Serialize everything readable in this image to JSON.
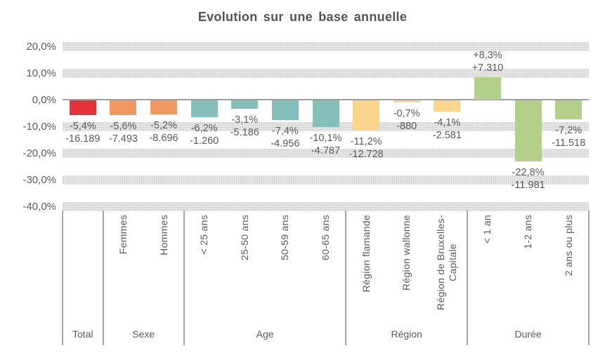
{
  "title": "Evolution sur une base annuelle",
  "colors": {
    "total": "#E7313A",
    "sexe": "#F0985F",
    "age": "#84BFBC",
    "region": "#FBD58B",
    "duree": "#B2D089",
    "text": "#595959",
    "grid_band": "#E0E0E0",
    "axis_line": "#9E9E9E"
  },
  "chart_data": {
    "type": "bar",
    "title": "Evolution sur une base annuelle",
    "xlabel": "",
    "ylabel": "",
    "ylim": [
      -40,
      20
    ],
    "grid": "horizontal-bands",
    "legend": "none",
    "yticks": [
      {
        "value": 20,
        "label": "20,0%"
      },
      {
        "value": 10,
        "label": "10,0%"
      },
      {
        "value": 0,
        "label": "0,0%"
      },
      {
        "value": -10,
        "label": "-10,0%"
      },
      {
        "value": -20,
        "label": "-20,0%"
      },
      {
        "value": -30,
        "label": "-30,0%"
      },
      {
        "value": -40,
        "label": "-40,0%"
      }
    ],
    "groups": [
      {
        "label": "Total",
        "color": "#E7313A",
        "bars": [
          {
            "category": "",
            "value_pct": -5.4,
            "label_pct": "-5,4%",
            "label_abs": "-16.189"
          }
        ]
      },
      {
        "label": "Sexe",
        "color": "#F0985F",
        "bars": [
          {
            "category": "Femmes",
            "value_pct": -5.6,
            "label_pct": "-5,6%",
            "label_abs": "-7.493"
          },
          {
            "category": "Hommes",
            "value_pct": -5.2,
            "label_pct": "-5,2%",
            "label_abs": "-8.696"
          }
        ]
      },
      {
        "label": "Age",
        "color": "#84BFBC",
        "bars": [
          {
            "category": "< 25 ans",
            "value_pct": -6.2,
            "label_pct": "-6,2%",
            "label_abs": "-1.260"
          },
          {
            "category": "25-50 ans",
            "value_pct": -3.1,
            "label_pct": "-3,1%",
            "label_abs": "-5.186"
          },
          {
            "category": "50-59 ans",
            "value_pct": -7.4,
            "label_pct": "-7,4%",
            "label_abs": "-4.956"
          },
          {
            "category": "60-65 ans",
            "value_pct": -10.1,
            "label_pct": "-10,1%",
            "label_abs": "-4.787"
          }
        ]
      },
      {
        "label": "Région",
        "color": "#FBD58B",
        "bars": [
          {
            "category": "Région flamande",
            "value_pct": -11.2,
            "label_pct": "-11,2%",
            "label_abs": "-12.728"
          },
          {
            "category": "Région wallonne",
            "value_pct": -0.7,
            "label_pct": "-0,7%",
            "label_abs": "-880"
          },
          {
            "category": "Région de Bruxelles-Capitale",
            "category_lines": [
              "Région de Bruxelles-",
              "Capitale"
            ],
            "value_pct": -4.1,
            "label_pct": "-4,1%",
            "label_abs": "-2.581"
          }
        ]
      },
      {
        "label": "Durée",
        "color": "#B2D089",
        "bars": [
          {
            "category": "< 1 an",
            "value_pct": 8.3,
            "label_pct": "+8,3%",
            "label_abs": "+7.310"
          },
          {
            "category": "1-2 ans",
            "value_pct": -22.8,
            "label_pct": "-22,8%",
            "label_abs": "-11.981"
          },
          {
            "category": "2 ans ou plus",
            "value_pct": -7.2,
            "label_pct": "-7,2%",
            "label_abs": "-11.518"
          }
        ]
      }
    ]
  }
}
